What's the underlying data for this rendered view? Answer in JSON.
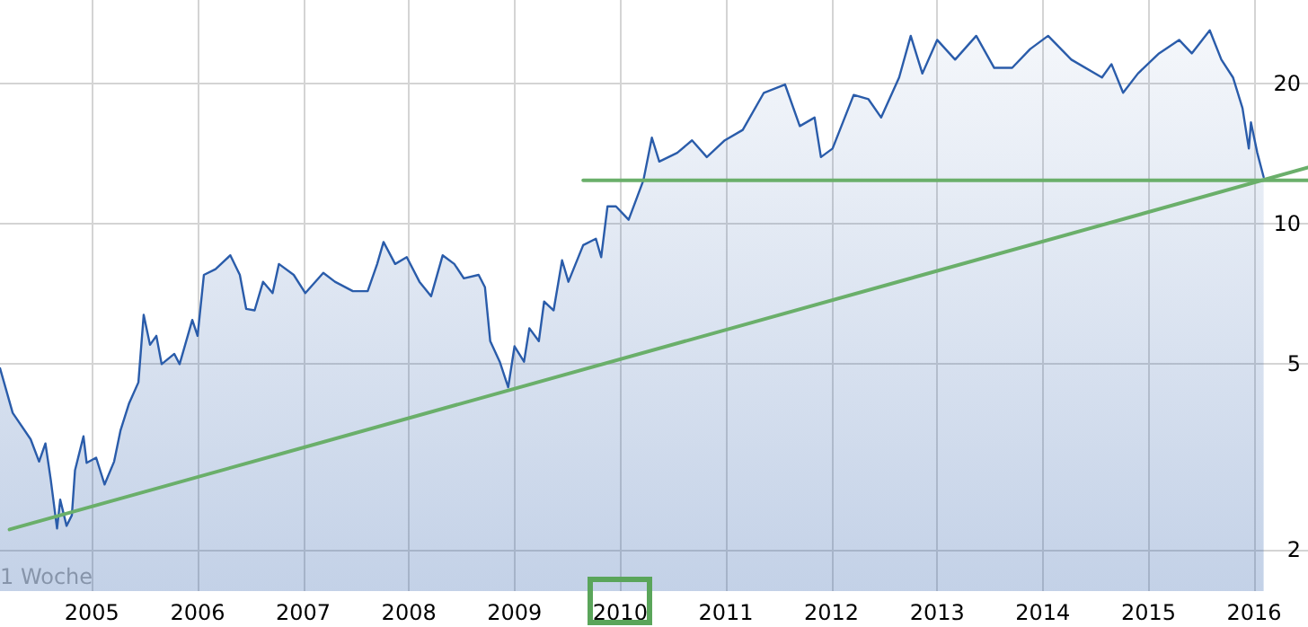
{
  "chart_data": {
    "type": "area",
    "x": [
      2004.13,
      2004.25,
      2004.42,
      2004.5,
      2004.56,
      2004.61,
      2004.67,
      2004.7,
      2004.76,
      2004.81,
      2004.84,
      2004.92,
      2004.95,
      2005.04,
      2005.12,
      2005.21,
      2005.27,
      2005.35,
      2005.44,
      2005.49,
      2005.55,
      2005.61,
      2005.66,
      2005.78,
      2005.83,
      2005.95,
      2006.0,
      2006.06,
      2006.17,
      2006.31,
      2006.4,
      2006.46,
      2006.54,
      2006.62,
      2006.71,
      2006.77,
      2006.91,
      2007.02,
      2007.19,
      2007.3,
      2007.47,
      2007.61,
      2007.7,
      2007.76,
      2007.87,
      2007.98,
      2008.1,
      2008.21,
      2008.32,
      2008.43,
      2008.52,
      2008.66,
      2008.72,
      2008.77,
      2008.86,
      2008.94,
      2009.0,
      2009.09,
      2009.14,
      2009.23,
      2009.28,
      2009.37,
      2009.45,
      2009.51,
      2009.65,
      2009.77,
      2009.82,
      2009.88,
      2009.96,
      2010.08,
      2010.22,
      2010.3,
      2010.37,
      2010.54,
      2010.68,
      2010.82,
      2010.99,
      2011.16,
      2011.36,
      2011.56,
      2011.7,
      2011.84,
      2011.9,
      2012.01,
      2012.21,
      2012.35,
      2012.47,
      2012.64,
      2012.75,
      2012.86,
      2013.0,
      2013.17,
      2013.37,
      2013.54,
      2013.71,
      2013.88,
      2014.05,
      2014.27,
      2014.56,
      2014.65,
      2014.76,
      2014.9,
      2015.1,
      2015.29,
      2015.41,
      2015.58,
      2015.69,
      2015.8,
      2015.89,
      2015.95,
      2015.97,
      2016.03,
      2016.09
    ],
    "series": [
      {
        "color": "#2a5caa",
        "values": [
          4.9,
          3.93,
          3.45,
          3.09,
          3.38,
          2.83,
          2.22,
          2.56,
          2.25,
          2.37,
          2.96,
          3.5,
          3.07,
          3.15,
          2.76,
          3.09,
          3.6,
          4.11,
          4.57,
          6.38,
          5.5,
          5.75,
          5.0,
          5.26,
          5.0,
          6.22,
          5.75,
          7.77,
          7.99,
          8.56,
          7.77,
          6.57,
          6.52,
          7.51,
          7.1,
          8.2,
          7.77,
          7.1,
          7.85,
          7.51,
          7.17,
          7.17,
          8.2,
          9.14,
          8.2,
          8.48,
          7.51,
          6.99,
          8.56,
          8.2,
          7.64,
          7.77,
          7.31,
          5.6,
          5.06,
          4.46,
          5.46,
          5.06,
          5.97,
          5.6,
          6.81,
          6.52,
          8.35,
          7.51,
          9.0,
          9.29,
          8.48,
          10.9,
          10.9,
          10.2,
          12.4,
          15.3,
          13.6,
          14.2,
          15.1,
          13.9,
          15.1,
          15.9,
          19.1,
          19.9,
          16.2,
          16.9,
          13.9,
          14.5,
          18.9,
          18.5,
          16.9,
          20.6,
          25.3,
          21.0,
          24.8,
          22.5,
          25.3,
          21.6,
          21.6,
          23.7,
          25.3,
          22.5,
          20.6,
          22.0,
          19.1,
          21.0,
          23.2,
          24.8,
          23.2,
          26.0,
          22.5,
          20.6,
          17.7,
          14.5,
          16.5,
          14.2,
          12.6
        ]
      },
      {
        "type": "line",
        "color": "#6aaf6a",
        "x": [
          2009.65,
          2016.51
        ],
        "values": [
          12.4,
          12.4
        ]
      },
      {
        "type": "line",
        "color": "#6aaf6a",
        "x": [
          2004.22,
          2016.51
        ],
        "values": [
          2.21,
          13.2
        ]
      }
    ],
    "xlim": [
      2004.13,
      2016.51
    ],
    "xticks": [
      2005,
      2006,
      2007,
      2008,
      2009,
      2010,
      2011,
      2012,
      2013,
      2014,
      2015,
      2016
    ],
    "ylim": [
      1.63,
      30.2
    ],
    "yticks": [
      2,
      5,
      10,
      20
    ],
    "log": "y",
    "grid": true,
    "marker": "none",
    "annotations": [
      "1 Woche"
    ]
  }
}
